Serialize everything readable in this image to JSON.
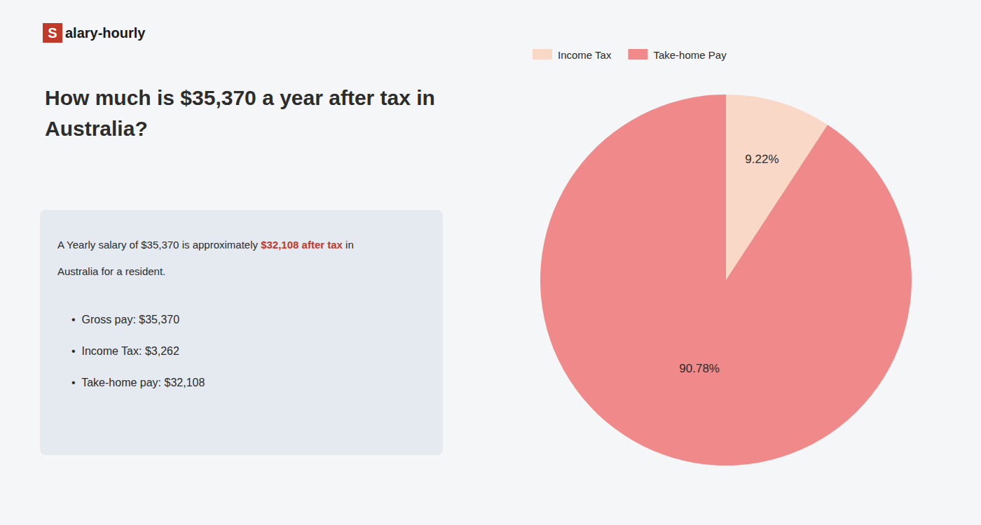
{
  "chart_data": {
    "type": "pie",
    "title": "How much is $35,370 a year after tax in\nAustralia?",
    "categories": [
      "Income Tax",
      "Take-home Pay"
    ],
    "values": [
      9.22,
      90.78
    ],
    "value_labels": [
      "9.22%",
      "90.78%"
    ],
    "colors": [
      "#f9d8c8",
      "#f08a8a"
    ],
    "data_labels": true,
    "legend": "upper left",
    "annotations": [
      {
        "text": "S",
        "color": "#c0392b"
      },
      {
        "text": "alary-hourly"
      },
      {
        "text": "A Yearly salary of $35,370 is approximately "
      },
      {
        "text": "$32,108 after tax",
        "color": "#c0392b"
      },
      {
        "text": " in"
      },
      {
        "text": "Australia for a resident."
      },
      {
        "text": "•  Gross pay: $35,370"
      },
      {
        "text": "•  Income Tax: $3,262"
      },
      {
        "text": "•  Take-home pay: $32,108"
      }
    ]
  }
}
